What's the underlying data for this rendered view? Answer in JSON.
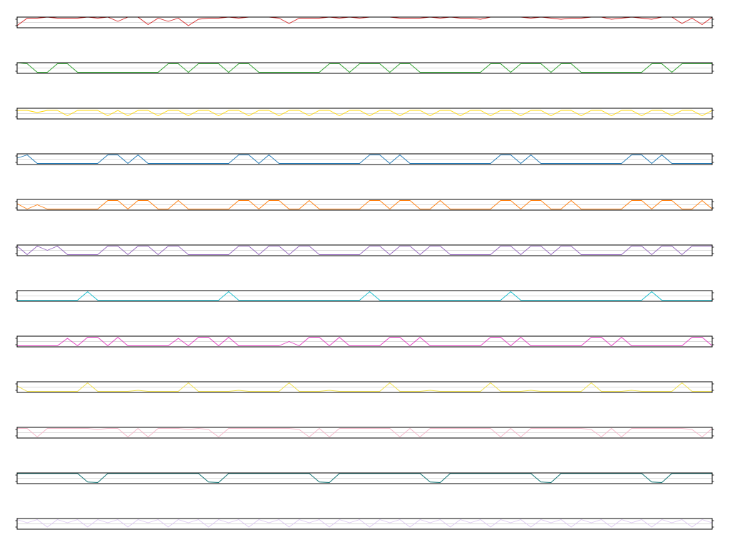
{
  "chart_data": {
    "type": "line",
    "layout": "stacked-panels",
    "grid": true,
    "legend": "none",
    "title": "",
    "xlabel": "",
    "ylabel": "",
    "xlim": [
      0,
      69
    ],
    "panels": [
      {
        "color": "#d62728",
        "ylim": [
          0,
          1
        ],
        "values": [
          0.2,
          0.9,
          0.9,
          1.0,
          0.9,
          0.9,
          0.9,
          1.0,
          0.9,
          1.0,
          0.6,
          1.0,
          1.0,
          0.3,
          0.9,
          0.6,
          0.9,
          0.2,
          0.8,
          0.9,
          0.9,
          1.0,
          0.9,
          1.0,
          1.0,
          1.0,
          0.9,
          0.4,
          0.9,
          0.9,
          0.9,
          1.0,
          0.9,
          1.0,
          0.9,
          1.0,
          1.0,
          1.0,
          0.9,
          0.9,
          0.9,
          1.0,
          0.9,
          1.0,
          0.9,
          0.9,
          0.8,
          1.0,
          1.0,
          1.0,
          1.0,
          0.9,
          1.0,
          0.9,
          0.8,
          0.9,
          0.9,
          1.0,
          1.0,
          0.8,
          0.9,
          1.0,
          0.9,
          0.8,
          1.0,
          1.0,
          0.4,
          0.9,
          0.3,
          1.0
        ]
      },
      {
        "color": "#2ca02c",
        "ylim": [
          0,
          1
        ],
        "values": [
          1.0,
          0.9,
          0.1,
          0.1,
          0.9,
          0.9,
          0.1,
          0.1,
          0.1,
          0.1,
          0.1,
          0.1,
          0.1,
          0.1,
          0.1,
          0.9,
          0.9,
          0.1,
          0.9,
          0.9,
          0.9,
          0.1,
          0.9,
          0.9,
          0.1,
          0.1,
          0.1,
          0.1,
          0.1,
          0.1,
          0.1,
          0.9,
          0.9,
          0.1,
          0.9,
          0.9,
          0.9,
          0.1,
          0.9,
          0.9,
          0.1,
          0.1,
          0.1,
          0.1,
          0.1,
          0.1,
          0.1,
          0.9,
          0.9,
          0.1,
          0.9,
          0.9,
          0.9,
          0.1,
          0.9,
          0.9,
          0.1,
          0.1,
          0.1,
          0.1,
          0.1,
          0.1,
          0.1,
          0.9,
          0.9,
          0.1,
          0.9,
          0.9,
          0.9,
          0.9
        ]
      },
      {
        "color": "#ffd700",
        "ylim": [
          0,
          1
        ],
        "values": [
          0.8,
          0.8,
          0.6,
          0.8,
          0.8,
          0.3,
          0.8,
          0.8,
          0.8,
          0.3,
          0.8,
          0.3,
          0.8,
          0.8,
          0.3,
          0.8,
          0.8,
          0.3,
          0.8,
          0.8,
          0.3,
          0.8,
          0.8,
          0.3,
          0.8,
          0.8,
          0.3,
          0.8,
          0.8,
          0.3,
          0.8,
          0.8,
          0.3,
          0.8,
          0.8,
          0.3,
          0.8,
          0.8,
          0.3,
          0.8,
          0.8,
          0.3,
          0.8,
          0.8,
          0.3,
          0.8,
          0.8,
          0.3,
          0.8,
          0.8,
          0.3,
          0.8,
          0.8,
          0.3,
          0.8,
          0.8,
          0.3,
          0.8,
          0.8,
          0.3,
          0.8,
          0.8,
          0.3,
          0.8,
          0.8,
          0.3,
          0.8,
          0.8,
          0.3,
          0.8
        ]
      },
      {
        "color": "#1f77b4",
        "ylim": [
          0,
          1
        ],
        "values": [
          0.6,
          0.9,
          0.1,
          0.1,
          0.1,
          0.1,
          0.1,
          0.1,
          0.1,
          0.9,
          0.9,
          0.1,
          0.9,
          0.1,
          0.1,
          0.1,
          0.1,
          0.1,
          0.1,
          0.1,
          0.1,
          0.1,
          0.9,
          0.9,
          0.1,
          0.9,
          0.1,
          0.1,
          0.1,
          0.1,
          0.1,
          0.1,
          0.1,
          0.1,
          0.1,
          0.9,
          0.9,
          0.1,
          0.9,
          0.1,
          0.1,
          0.1,
          0.1,
          0.1,
          0.1,
          0.1,
          0.1,
          0.1,
          0.9,
          0.9,
          0.1,
          0.9,
          0.1,
          0.1,
          0.1,
          0.1,
          0.1,
          0.1,
          0.1,
          0.1,
          0.1,
          0.9,
          0.9,
          0.1,
          0.9,
          0.1,
          0.1,
          0.1,
          0.1,
          0.1
        ]
      },
      {
        "color": "#ff7f0e",
        "ylim": [
          0,
          1
        ],
        "values": [
          0.6,
          0.1,
          0.5,
          0.1,
          0.1,
          0.1,
          0.1,
          0.1,
          0.1,
          0.9,
          0.9,
          0.1,
          0.9,
          0.9,
          0.1,
          0.1,
          0.9,
          0.1,
          0.1,
          0.1,
          0.1,
          0.1,
          0.9,
          0.9,
          0.1,
          0.9,
          0.9,
          0.1,
          0.1,
          0.9,
          0.1,
          0.1,
          0.1,
          0.1,
          0.1,
          0.9,
          0.9,
          0.1,
          0.9,
          0.9,
          0.1,
          0.1,
          0.9,
          0.1,
          0.1,
          0.1,
          0.1,
          0.1,
          0.9,
          0.9,
          0.1,
          0.9,
          0.9,
          0.1,
          0.1,
          0.9,
          0.1,
          0.1,
          0.1,
          0.1,
          0.1,
          0.9,
          0.9,
          0.1,
          0.9,
          0.9,
          0.1,
          0.1,
          0.9,
          0.1
        ]
      },
      {
        "color": "#9467bd",
        "ylim": [
          0,
          1
        ],
        "values": [
          0.9,
          0.1,
          0.9,
          0.5,
          0.9,
          0.1,
          0.1,
          0.1,
          0.1,
          0.9,
          0.9,
          0.1,
          0.9,
          0.9,
          0.1,
          0.9,
          0.9,
          0.1,
          0.1,
          0.1,
          0.1,
          0.1,
          0.9,
          0.9,
          0.1,
          0.9,
          0.9,
          0.1,
          0.9,
          0.9,
          0.1,
          0.1,
          0.1,
          0.1,
          0.1,
          0.9,
          0.9,
          0.1,
          0.9,
          0.9,
          0.1,
          0.9,
          0.9,
          0.1,
          0.1,
          0.1,
          0.1,
          0.1,
          0.9,
          0.9,
          0.1,
          0.9,
          0.9,
          0.1,
          0.9,
          0.9,
          0.1,
          0.1,
          0.1,
          0.1,
          0.1,
          0.9,
          0.9,
          0.1,
          0.9,
          0.9,
          0.1,
          0.9,
          0.9,
          0.9
        ]
      },
      {
        "color": "#17becf",
        "ylim": [
          0,
          1
        ],
        "values": [
          0.1,
          0.1,
          0.1,
          0.1,
          0.1,
          0.1,
          0.1,
          0.9,
          0.1,
          0.1,
          0.1,
          0.1,
          0.1,
          0.1,
          0.1,
          0.1,
          0.1,
          0.1,
          0.1,
          0.1,
          0.1,
          0.9,
          0.1,
          0.1,
          0.1,
          0.1,
          0.1,
          0.1,
          0.1,
          0.1,
          0.1,
          0.1,
          0.1,
          0.1,
          0.1,
          0.9,
          0.1,
          0.1,
          0.1,
          0.1,
          0.1,
          0.1,
          0.1,
          0.1,
          0.1,
          0.1,
          0.1,
          0.1,
          0.1,
          0.9,
          0.1,
          0.1,
          0.1,
          0.1,
          0.1,
          0.1,
          0.1,
          0.1,
          0.1,
          0.1,
          0.1,
          0.1,
          0.1,
          0.9,
          0.1,
          0.1,
          0.1,
          0.1,
          0.1,
          0.1
        ]
      },
      {
        "color": "#e040c0",
        "ylim": [
          0,
          1
        ],
        "values": [
          0.1,
          0.1,
          0.1,
          0.1,
          0.1,
          0.8,
          0.1,
          0.9,
          0.9,
          0.1,
          0.9,
          0.1,
          0.1,
          0.1,
          0.1,
          0.1,
          0.8,
          0.1,
          0.9,
          0.9,
          0.1,
          0.9,
          0.1,
          0.1,
          0.1,
          0.1,
          0.1,
          0.5,
          0.1,
          0.9,
          0.9,
          0.1,
          0.9,
          0.1,
          0.1,
          0.1,
          0.1,
          0.9,
          0.9,
          0.1,
          0.9,
          0.1,
          0.1,
          0.1,
          0.1,
          0.1,
          0.1,
          0.9,
          0.9,
          0.1,
          0.9,
          0.1,
          0.1,
          0.1,
          0.1,
          0.1,
          0.1,
          0.9,
          0.9,
          0.1,
          0.9,
          0.1,
          0.1,
          0.1,
          0.1,
          0.1,
          0.1,
          0.9,
          0.9,
          0.1
        ]
      },
      {
        "color": "#f0e04a",
        "ylim": [
          0,
          1
        ],
        "values": [
          0.6,
          0.1,
          0.1,
          0.1,
          0.1,
          0.1,
          0.1,
          0.9,
          0.1,
          0.1,
          0.1,
          0.1,
          0.2,
          0.1,
          0.1,
          0.1,
          0.1,
          0.9,
          0.1,
          0.1,
          0.1,
          0.1,
          0.2,
          0.1,
          0.1,
          0.1,
          0.1,
          0.9,
          0.1,
          0.1,
          0.1,
          0.2,
          0.1,
          0.1,
          0.1,
          0.1,
          0.1,
          0.9,
          0.1,
          0.1,
          0.1,
          0.2,
          0.1,
          0.1,
          0.1,
          0.1,
          0.1,
          0.9,
          0.1,
          0.1,
          0.1,
          0.2,
          0.1,
          0.1,
          0.1,
          0.1,
          0.1,
          0.9,
          0.1,
          0.1,
          0.1,
          0.2,
          0.1,
          0.1,
          0.1,
          0.1,
          0.9,
          0.1,
          0.1,
          0.1
        ]
      },
      {
        "color": "#f4b6c8",
        "ylim": [
          0,
          1
        ],
        "values": [
          0.9,
          0.9,
          0.1,
          0.9,
          0.9,
          0.9,
          0.9,
          0.9,
          0.8,
          0.9,
          0.9,
          0.1,
          0.9,
          0.1,
          0.9,
          0.9,
          0.9,
          0.8,
          0.9,
          0.8,
          0.1,
          0.9,
          0.9,
          0.9,
          0.9,
          0.9,
          0.9,
          0.9,
          0.8,
          0.1,
          0.9,
          0.1,
          0.9,
          0.9,
          0.9,
          0.9,
          0.9,
          0.9,
          0.1,
          0.9,
          0.1,
          0.9,
          0.9,
          0.9,
          0.9,
          0.9,
          0.9,
          0.9,
          0.1,
          0.9,
          0.1,
          0.9,
          0.9,
          0.9,
          0.9,
          0.9,
          0.9,
          0.8,
          0.1,
          0.9,
          0.1,
          0.9,
          0.9,
          0.9,
          0.9,
          0.9,
          0.9,
          0.8,
          0.1,
          0.9
        ]
      },
      {
        "color": "#0b6e6e",
        "ylim": [
          0,
          1
        ],
        "values": [
          0.95,
          0.95,
          0.95,
          0.95,
          0.95,
          0.95,
          0.95,
          0.15,
          0.1,
          0.95,
          0.95,
          0.95,
          0.95,
          0.95,
          0.95,
          0.95,
          0.95,
          0.95,
          0.95,
          0.15,
          0.1,
          0.95,
          0.95,
          0.95,
          0.95,
          0.95,
          0.95,
          0.95,
          0.95,
          0.95,
          0.15,
          0.1,
          0.95,
          0.95,
          0.95,
          0.95,
          0.95,
          0.95,
          0.95,
          0.95,
          0.95,
          0.15,
          0.1,
          0.95,
          0.95,
          0.95,
          0.95,
          0.95,
          0.95,
          0.95,
          0.95,
          0.95,
          0.15,
          0.1,
          0.95,
          0.95,
          0.95,
          0.95,
          0.95,
          0.95,
          0.95,
          0.95,
          0.95,
          0.15,
          0.1,
          0.95,
          0.95,
          0.95,
          0.95,
          0.95
        ]
      },
      {
        "color": "#dcc8f0",
        "ylim": [
          0,
          1
        ],
        "values": [
          0.9,
          0.6,
          0.9,
          0.2,
          0.9,
          0.6,
          0.9,
          0.2,
          0.9,
          0.6,
          0.9,
          0.2,
          0.9,
          0.6,
          0.9,
          0.2,
          0.9,
          0.6,
          0.9,
          0.2,
          0.9,
          0.6,
          0.9,
          0.2,
          0.9,
          0.6,
          0.9,
          0.2,
          0.9,
          0.6,
          0.9,
          0.2,
          0.9,
          0.6,
          0.9,
          0.2,
          0.9,
          0.6,
          0.9,
          0.2,
          0.9,
          0.6,
          0.9,
          0.2,
          0.9,
          0.6,
          0.9,
          0.2,
          0.9,
          0.6,
          0.9,
          0.2,
          0.9,
          0.6,
          0.9,
          0.2,
          0.9,
          0.6,
          0.9,
          0.2,
          0.9,
          0.6,
          0.9,
          0.2,
          0.9,
          0.6,
          0.9,
          0.2,
          0.9,
          0.6
        ]
      }
    ]
  }
}
